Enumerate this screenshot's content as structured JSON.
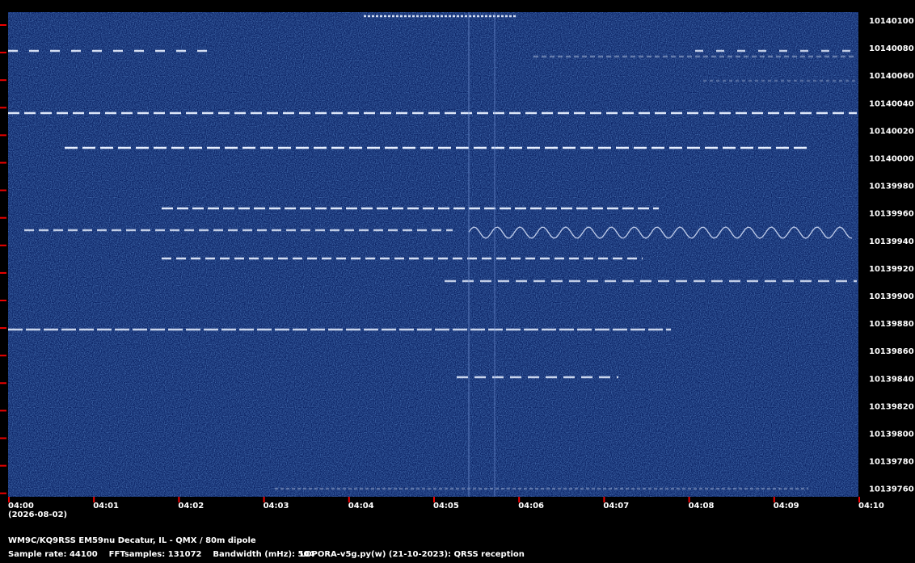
{
  "frequency_labels": [
    "10140100",
    "10140080",
    "10140060",
    "10140040",
    "10140020",
    "10140000",
    "10139980",
    "10139960",
    "10139940",
    "10139920",
    "10139900",
    "10139880",
    "10139860",
    "10139840",
    "10139820",
    "10139800",
    "10139780",
    "10139760"
  ],
  "time_labels": [
    "04:00",
    "04:01",
    "04:02",
    "04:03",
    "04:04",
    "04:05",
    "04:06",
    "04:07",
    "04:08",
    "04:09",
    "04:10"
  ],
  "date": "(2026-08-02)",
  "footer": {
    "station": "WM9C/KQ9RSS EM59nu Decatur, IL - QMX / 80m dipole",
    "settings": "Sample rate: 44100    FFTsamples: 131072    Bandwidth (mHz): 504",
    "software": "LOPORA-v5g.py(w) (21-10-2023): QRSS reception"
  }
}
